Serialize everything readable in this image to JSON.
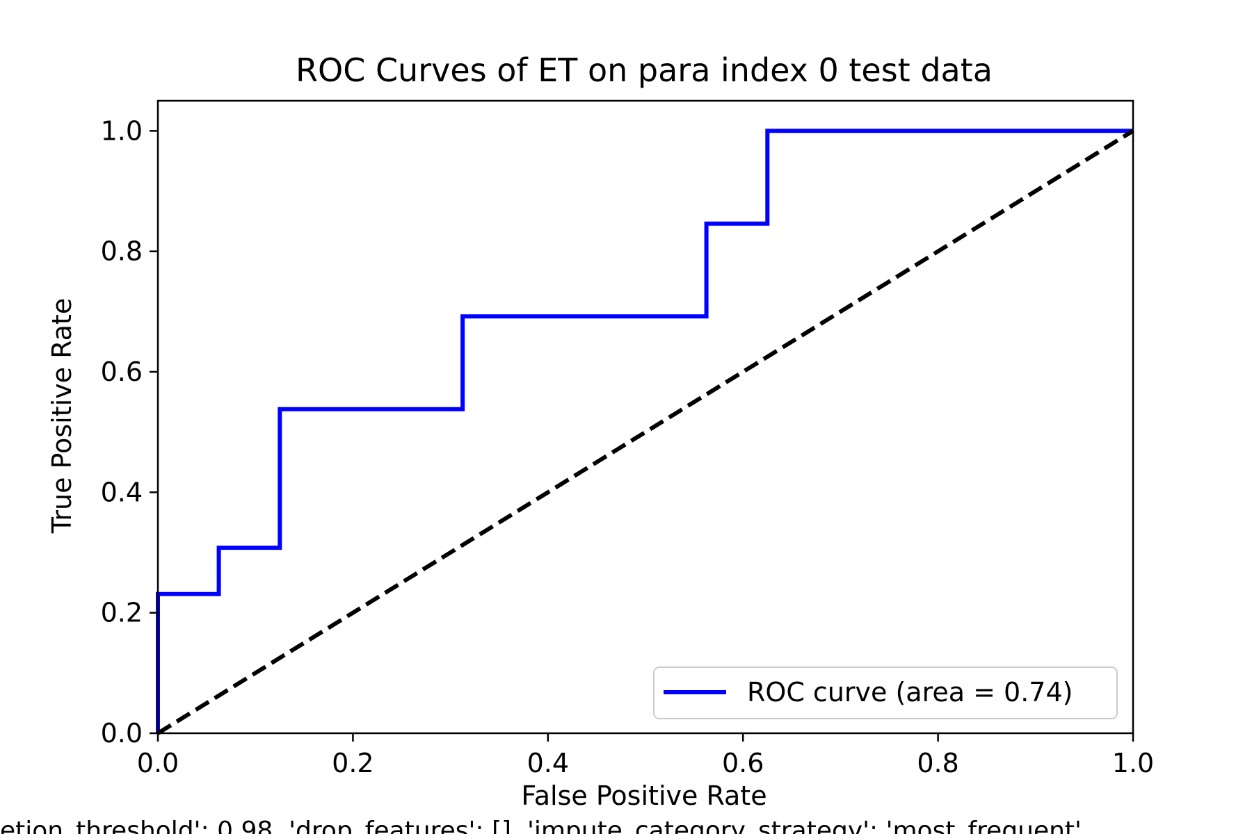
{
  "chart_data": {
    "type": "line",
    "title": "ROC Curves of ET on para index 0 test data",
    "xlabel": "False Positive Rate",
    "ylabel": "True Positive Rate",
    "xlim": [
      0.0,
      1.0
    ],
    "ylim": [
      0.0,
      1.05
    ],
    "xticks": [
      0.0,
      0.2,
      0.4,
      0.6,
      0.8,
      1.0
    ],
    "xtick_labels": [
      "0.0",
      "0.2",
      "0.4",
      "0.6",
      "0.8",
      "1.0"
    ],
    "yticks": [
      0.0,
      0.2,
      0.4,
      0.6,
      0.8,
      1.0
    ],
    "ytick_labels": [
      "0.0",
      "0.2",
      "0.4",
      "0.6",
      "0.8",
      "1.0"
    ],
    "grid": false,
    "legend_position": "lower-right",
    "series": [
      {
        "name": "ROC curve (area = 0.74)",
        "color": "#0000ff",
        "style": "solid",
        "x": [
          0.0,
          0.0,
          0.0625,
          0.0625,
          0.125,
          0.125,
          0.3125,
          0.3125,
          0.5625,
          0.5625,
          0.625,
          0.625,
          1.0
        ],
        "y": [
          0.0,
          0.231,
          0.231,
          0.308,
          0.308,
          0.538,
          0.538,
          0.692,
          0.692,
          0.846,
          0.846,
          1.0,
          1.0
        ]
      },
      {
        "color": "#000000",
        "style": "dashed",
        "x": [
          0.0,
          1.0
        ],
        "y": [
          0.0,
          1.0
        ]
      }
    ],
    "caption": "etion_threshold': 0.98, 'drop_features': [], 'impute_category_strategy': 'most_frequent'"
  }
}
